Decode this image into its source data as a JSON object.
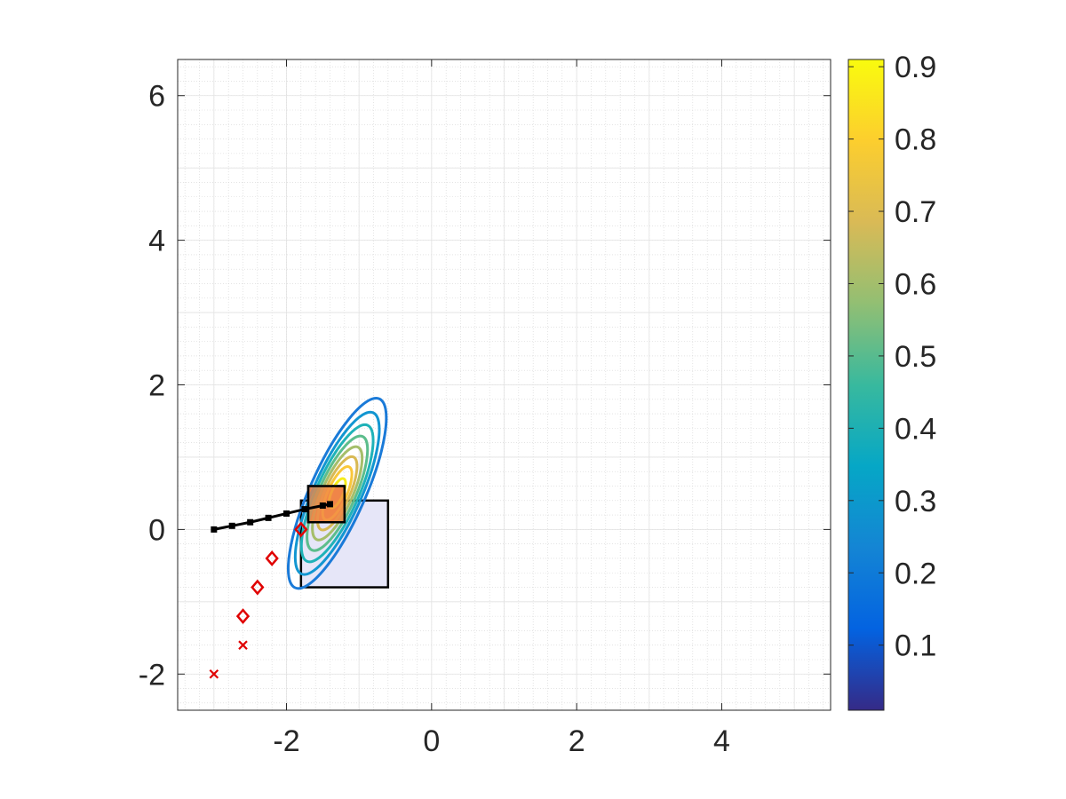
{
  "chart_data": {
    "type": "contour",
    "title": "",
    "xlabel": "",
    "ylabel": "",
    "xlim": [
      -3.5,
      5.5
    ],
    "ylim": [
      -2.5,
      6.5
    ],
    "xticks": [
      -2,
      0,
      2,
      4
    ],
    "yticks": [
      -2,
      0,
      2,
      4,
      6
    ],
    "x_tick_labels": [
      "-2",
      "0",
      "2",
      "4"
    ],
    "y_tick_labels": [
      "-2",
      "0",
      "2",
      "4",
      "6"
    ],
    "grid": true,
    "minor_grid": true,
    "colormap": "parula",
    "colorbar": {
      "range": [
        0.01,
        0.91
      ],
      "ticks": [
        0.1,
        0.2,
        0.3,
        0.4,
        0.5,
        0.6,
        0.7,
        0.8,
        0.9
      ],
      "tick_labels": [
        "0.1",
        "0.2",
        "0.3",
        "0.4",
        "0.5",
        "0.6",
        "0.7",
        "0.8",
        "0.9"
      ],
      "stops": [
        "#352a87",
        "#0363e1",
        "#1485d4",
        "#06a7c6",
        "#38b99e",
        "#92bf73",
        "#d9ba56",
        "#fcce2e",
        "#f9fb0e"
      ]
    },
    "gaussian_contours": {
      "center": [
        -1.3,
        0.5
      ],
      "levels": [
        {
          "level": 0.2,
          "color": "#1a7ad8",
          "rx": 0.38,
          "ry": 1.43
        },
        {
          "level": 0.3,
          "color": "#1296d1",
          "rx": 0.33,
          "ry": 1.22
        },
        {
          "level": 0.4,
          "color": "#1fb2b8",
          "rx": 0.29,
          "ry": 1.03
        },
        {
          "level": 0.5,
          "color": "#5cbd8c",
          "rx": 0.25,
          "ry": 0.86
        },
        {
          "level": 0.6,
          "color": "#a5be6a",
          "rx": 0.21,
          "ry": 0.7
        },
        {
          "level": 0.7,
          "color": "#d8b954",
          "rx": 0.17,
          "ry": 0.55
        },
        {
          "level": 0.8,
          "color": "#f9c73a",
          "rx": 0.13,
          "ry": 0.4
        },
        {
          "level": 0.9,
          "color": "#f6ec1a",
          "rx": 0.08,
          "ry": 0.22
        }
      ],
      "rotation_deg": -24
    },
    "rectangles": [
      {
        "name": "blue-region",
        "x": [
          -1.8,
          -0.6
        ],
        "y": [
          -0.8,
          0.4
        ],
        "fill": "#e6e6f8",
        "edge": "#000000"
      },
      {
        "name": "orange-region",
        "x": [
          -1.7,
          -1.2
        ],
        "y": [
          0.1,
          0.6
        ],
        "fill": "#f08548",
        "edge": "#000000"
      }
    ],
    "series": [
      {
        "marker": "dot-line",
        "color": "#000000",
        "x": [
          -3.0,
          -2.75,
          -2.5,
          -2.25,
          -2.0,
          -1.75,
          -1.5,
          -1.4
        ],
        "y": [
          0.0,
          0.05,
          0.1,
          0.16,
          0.22,
          0.28,
          0.33,
          0.35
        ]
      },
      {
        "marker": "diamond",
        "color": "#e00000",
        "x": [
          -2.6,
          -2.4,
          -2.2,
          -1.8
        ],
        "y": [
          -1.2,
          -0.8,
          -0.4,
          0.0
        ]
      },
      {
        "marker": "x",
        "color": "#e00000",
        "x": [
          -3.0,
          -2.6
        ],
        "y": [
          -2.0,
          -1.6
        ]
      }
    ]
  }
}
